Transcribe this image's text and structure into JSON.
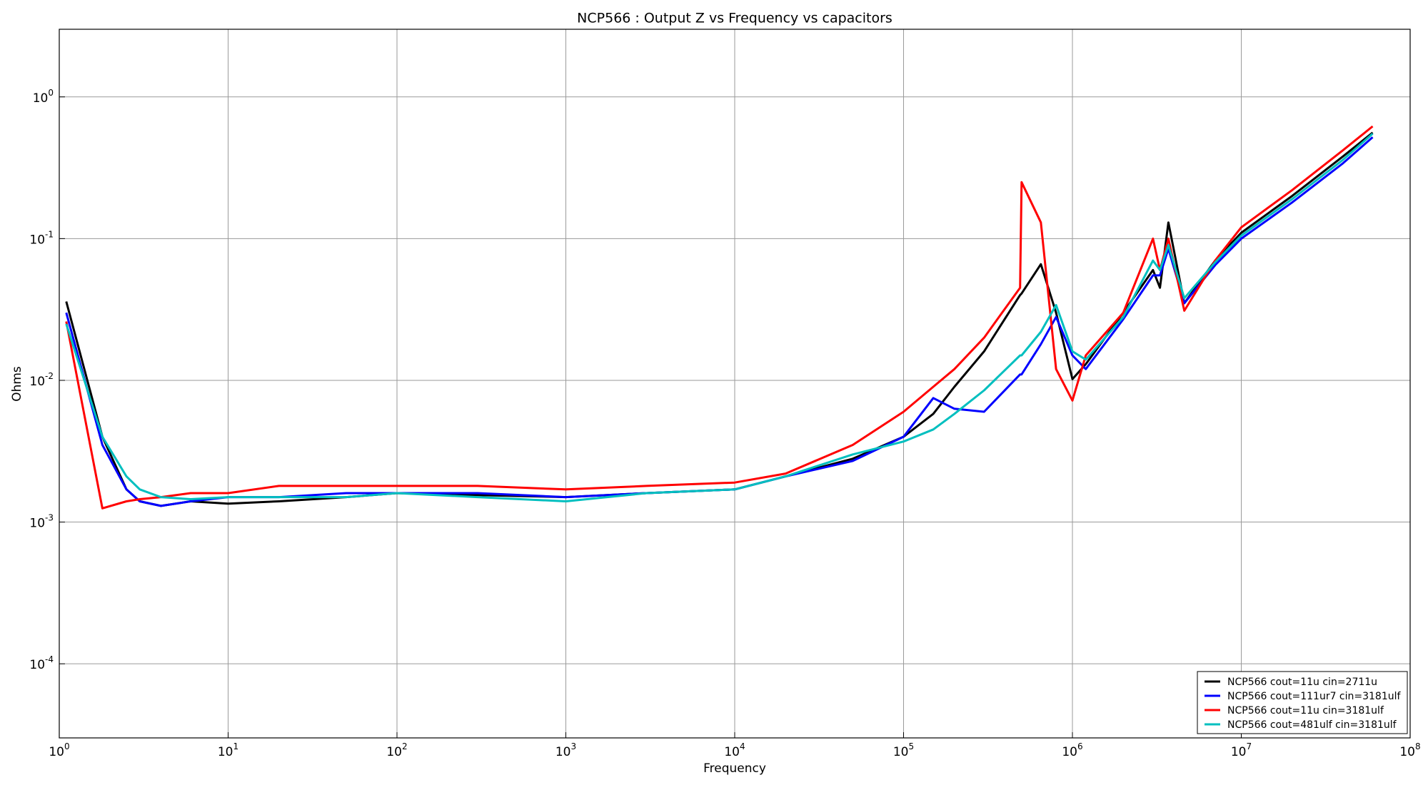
{
  "chart_data": {
    "type": "line",
    "title": "NCP566 : Output Z vs Frequency vs capacitors",
    "x_label": "Frequency",
    "y_label": "Ohms",
    "log_x": true,
    "log_y": true,
    "grid": true,
    "legend": "lower right",
    "xlim": [
      1,
      100000000
    ],
    "ylim": [
      3e-05,
      3
    ],
    "xticks": [
      {
        "value": 1,
        "label": "10^0"
      },
      {
        "value": 10,
        "label": "10^1"
      },
      {
        "value": 100,
        "label": "10^2"
      },
      {
        "value": 1000,
        "label": "10^3"
      },
      {
        "value": 10000,
        "label": "10^4"
      },
      {
        "value": 100000,
        "label": "10^5"
      },
      {
        "value": 1000000,
        "label": "10^6"
      },
      {
        "value": 10000000,
        "label": "10^7"
      },
      {
        "value": 100000000,
        "label": "10^8"
      }
    ],
    "yticks": [
      {
        "value": 0.0001,
        "label": "10^-4"
      },
      {
        "value": 0.001,
        "label": "10^-3"
      },
      {
        "value": 0.01,
        "label": "10^-2"
      },
      {
        "value": 0.1,
        "label": "10^-1"
      },
      {
        "value": 1,
        "label": "10^0"
      }
    ],
    "x": [
      1.1,
      1.8,
      2.5,
      3,
      4,
      6,
      10,
      20,
      50,
      100,
      300,
      1000,
      3000,
      10000,
      20000,
      50000,
      100000,
      150000,
      200000,
      300000,
      490000,
      500000,
      650000,
      800000,
      1000000,
      1200000,
      2000000,
      3000000,
      3300000,
      3700000,
      4600000,
      7000000,
      10000000,
      20000000,
      40000000,
      60000000
    ],
    "series": [
      {
        "name": "NCP566 cout=11u cin=2711u",
        "color": "#000000",
        "values": [
          0.036,
          0.004,
          0.0017,
          0.0014,
          0.0013,
          0.0014,
          0.00135,
          0.0014,
          0.0015,
          0.0016,
          0.00155,
          0.0015,
          0.0016,
          0.0017,
          0.0021,
          0.0028,
          0.004,
          0.0058,
          0.009,
          0.016,
          0.04,
          0.041,
          0.066,
          0.03,
          0.0102,
          0.013,
          0.03,
          0.06,
          0.045,
          0.13,
          0.035,
          0.07,
          0.11,
          0.2,
          0.38,
          0.56
        ]
      },
      {
        "name": "NCP566 cout=111ur7 cin=3181ulf",
        "color": "#0000ff",
        "values": [
          0.03,
          0.0035,
          0.0017,
          0.0014,
          0.0013,
          0.0014,
          0.0015,
          0.0015,
          0.0016,
          0.0016,
          0.0016,
          0.0015,
          0.0016,
          0.0017,
          0.0021,
          0.0027,
          0.004,
          0.0075,
          0.0063,
          0.006,
          0.011,
          0.011,
          0.018,
          0.028,
          0.015,
          0.012,
          0.027,
          0.055,
          0.055,
          0.085,
          0.035,
          0.065,
          0.1,
          0.18,
          0.34,
          0.52
        ]
      },
      {
        "name": "NCP566 cout=11u cin=3181ulf",
        "color": "#ff0000",
        "values": [
          0.026,
          0.00125,
          0.0014,
          0.00145,
          0.0015,
          0.0016,
          0.0016,
          0.0018,
          0.0018,
          0.0018,
          0.0018,
          0.0017,
          0.0018,
          0.0019,
          0.0022,
          0.0035,
          0.006,
          0.009,
          0.012,
          0.02,
          0.045,
          0.25,
          0.13,
          0.012,
          0.0072,
          0.015,
          0.03,
          0.1,
          0.06,
          0.1,
          0.031,
          0.07,
          0.12,
          0.22,
          0.42,
          0.62
        ]
      },
      {
        "name": "NCP566 cout=481ulf cin=3181ulf",
        "color": "#00bfbf",
        "values": [
          0.025,
          0.004,
          0.0021,
          0.0017,
          0.0015,
          0.00145,
          0.0015,
          0.0015,
          0.0015,
          0.0016,
          0.0015,
          0.0014,
          0.0016,
          0.0017,
          0.0021,
          0.003,
          0.0037,
          0.0045,
          0.0058,
          0.0085,
          0.015,
          0.015,
          0.022,
          0.034,
          0.016,
          0.014,
          0.028,
          0.07,
          0.06,
          0.09,
          0.038,
          0.068,
          0.105,
          0.19,
          0.36,
          0.55
        ]
      }
    ]
  }
}
